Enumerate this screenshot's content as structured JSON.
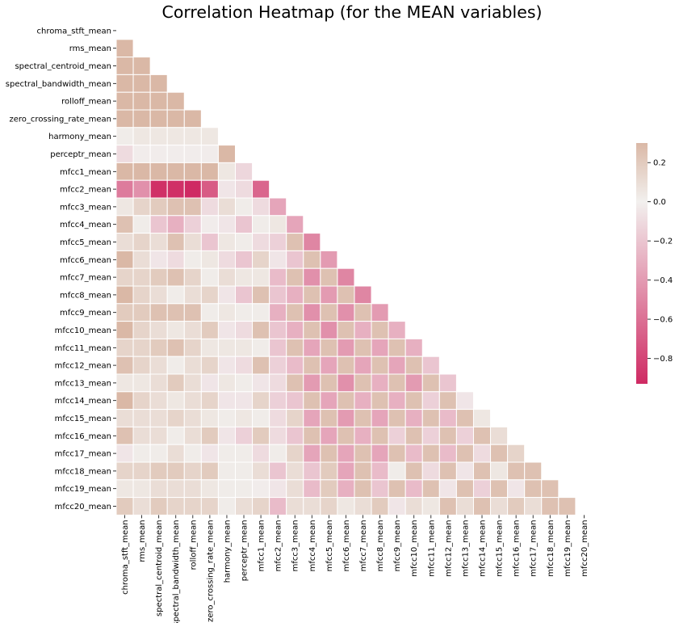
{
  "chart_data": {
    "type": "heatmap",
    "title": "Correlation Heatmap (for the MEAN variables)",
    "xlabel": "",
    "ylabel": "",
    "mask": "upper-triangle-including-diagonal",
    "labels": [
      "chroma_stft_mean",
      "rms_mean",
      "spectral_centroid_mean",
      "spectral_bandwidth_mean",
      "rolloff_mean",
      "zero_crossing_rate_mean",
      "harmony_mean",
      "perceptr_mean",
      "mfcc1_mean",
      "mfcc2_mean",
      "mfcc3_mean",
      "mfcc4_mean",
      "mfcc5_mean",
      "mfcc6_mean",
      "mfcc7_mean",
      "mfcc8_mean",
      "mfcc9_mean",
      "mfcc10_mean",
      "mfcc11_mean",
      "mfcc12_mean",
      "mfcc13_mean",
      "mfcc14_mean",
      "mfcc15_mean",
      "mfcc16_mean",
      "mfcc17_mean",
      "mfcc18_mean",
      "mfcc19_mean",
      "mfcc20_mean"
    ],
    "matrix": [
      [],
      [
        0.3
      ],
      [
        0.3,
        0.3
      ],
      [
        0.3,
        0.3,
        0.3
      ],
      [
        0.3,
        0.3,
        0.3,
        0.3
      ],
      [
        0.3,
        0.3,
        0.3,
        0.3,
        0.3
      ],
      [
        0.02,
        0.05,
        0.05,
        0.05,
        0.05,
        0.05
      ],
      [
        -0.1,
        -0.02,
        -0.02,
        -0.02,
        -0.02,
        -0.02,
        0.3
      ],
      [
        0.3,
        0.3,
        0.3,
        0.3,
        0.3,
        0.3,
        0.05,
        -0.12
      ],
      [
        -0.55,
        -0.45,
        -0.9,
        -0.9,
        -0.93,
        -0.7,
        -0.05,
        -0.1,
        -0.65
      ],
      [
        0.05,
        0.15,
        0.2,
        0.25,
        0.25,
        -0.1,
        0.1,
        0.02,
        -0.1,
        -0.35
      ],
      [
        0.25,
        0.02,
        -0.2,
        -0.3,
        -0.15,
        -0.02,
        -0.05,
        -0.2,
        0.02,
        0.05,
        -0.35
      ],
      [
        0.1,
        0.15,
        0.1,
        0.25,
        0.1,
        -0.2,
        0.05,
        0.02,
        -0.1,
        -0.15,
        0.25,
        -0.5
      ],
      [
        0.3,
        0.1,
        -0.05,
        -0.1,
        0.02,
        0.05,
        -0.1,
        -0.2,
        0.15,
        -0.05,
        -0.2,
        0.25,
        -0.4
      ],
      [
        0.15,
        0.15,
        0.2,
        0.25,
        0.15,
        0.02,
        0.1,
        0.05,
        0.05,
        -0.25,
        0.25,
        -0.45,
        0.25,
        -0.5
      ],
      [
        0.3,
        0.15,
        0.1,
        0.02,
        0.1,
        0.15,
        -0.05,
        -0.2,
        0.25,
        -0.2,
        -0.3,
        0.25,
        -0.4,
        0.25,
        -0.5
      ],
      [
        0.2,
        0.2,
        0.25,
        0.25,
        0.25,
        0.02,
        0.05,
        0.02,
        0.02,
        -0.3,
        0.25,
        -0.45,
        0.25,
        -0.45,
        0.25,
        -0.4
      ],
      [
        0.3,
        0.15,
        0.1,
        0.05,
        0.1,
        0.2,
        -0.05,
        -0.1,
        0.25,
        -0.2,
        -0.3,
        0.25,
        -0.45,
        0.25,
        -0.3,
        0.25,
        -0.3
      ],
      [
        0.15,
        0.15,
        0.2,
        0.25,
        0.15,
        0.05,
        0.05,
        0.05,
        0.02,
        -0.2,
        0.25,
        -0.35,
        0.25,
        -0.4,
        0.25,
        -0.35,
        0.25,
        -0.3
      ],
      [
        0.25,
        0.15,
        0.1,
        0.02,
        0.1,
        0.15,
        -0.05,
        -0.1,
        0.25,
        -0.15,
        -0.25,
        0.25,
        -0.35,
        0.25,
        -0.35,
        0.25,
        -0.35,
        0.25,
        -0.2
      ],
      [
        0.05,
        0.05,
        0.1,
        0.2,
        0.1,
        -0.05,
        0.05,
        0.02,
        -0.05,
        -0.1,
        0.25,
        -0.4,
        0.25,
        -0.45,
        0.25,
        -0.3,
        0.25,
        -0.4,
        0.25,
        -0.2
      ],
      [
        0.3,
        0.15,
        0.1,
        0.05,
        0.1,
        0.15,
        -0.05,
        -0.05,
        0.15,
        -0.15,
        -0.2,
        0.25,
        -0.35,
        0.25,
        -0.3,
        0.25,
        -0.3,
        0.25,
        -0.15,
        0.25,
        -0.05
      ],
      [
        0.1,
        0.1,
        0.1,
        0.15,
        0.1,
        0.05,
        0.02,
        0.05,
        0.02,
        -0.1,
        0.15,
        -0.35,
        0.25,
        -0.4,
        0.25,
        -0.35,
        0.25,
        -0.3,
        0.25,
        -0.25,
        0.25,
        0.05
      ],
      [
        0.25,
        0.1,
        0.1,
        0.02,
        0.1,
        0.2,
        -0.05,
        -0.15,
        0.2,
        -0.1,
        -0.2,
        0.25,
        -0.35,
        0.25,
        -0.3,
        0.25,
        -0.15,
        0.25,
        -0.15,
        0.25,
        -0.15,
        0.25,
        0.1
      ],
      [
        -0.05,
        0.02,
        0.02,
        0.1,
        0.02,
        -0.05,
        0.02,
        0.02,
        -0.1,
        0.02,
        0.15,
        -0.35,
        0.25,
        -0.35,
        0.25,
        -0.35,
        0.25,
        -0.25,
        0.25,
        -0.25,
        0.25,
        -0.1,
        0.25,
        0.15
      ],
      [
        0.15,
        0.15,
        0.2,
        0.2,
        0.15,
        0.2,
        0.02,
        0.02,
        0.1,
        -0.2,
        0.1,
        -0.2,
        0.2,
        -0.35,
        0.25,
        -0.25,
        0.02,
        0.25,
        -0.1,
        0.25,
        -0.05,
        0.25,
        0.05,
        0.25,
        0.25
      ],
      [
        0.05,
        0.05,
        0.1,
        0.1,
        0.1,
        0.05,
        0.02,
        0.02,
        -0.02,
        -0.05,
        0.1,
        -0.25,
        0.2,
        -0.3,
        0.25,
        -0.2,
        0.25,
        -0.25,
        0.25,
        -0.05,
        0.25,
        -0.15,
        0.25,
        -0.05,
        0.25,
        0.25
      ],
      [
        0.2,
        0.1,
        0.2,
        0.15,
        0.15,
        0.15,
        0.02,
        0.1,
        0.15,
        -0.25,
        0.1,
        0.1,
        0.15,
        0.05,
        0.1,
        0.2,
        -0.05,
        0.1,
        0.05,
        0.25,
        0.1,
        0.25,
        0.1,
        0.2,
        0.1,
        0.25,
        0.25
      ]
    ],
    "colorbar": {
      "vmin": -0.93,
      "vmax": 0.3,
      "ticks": [
        0.2,
        0.0,
        -0.2,
        -0.4,
        -0.6,
        -0.8
      ],
      "tick_labels": [
        "0.2",
        "0.0",
        "−0.2",
        "−0.4",
        "−0.6",
        "−0.8"
      ],
      "neg_color": "#cf2a63",
      "mid_color": "#f2f0ee",
      "pos_color": "#dab8a6"
    },
    "grid": false,
    "cell_border_color": "#ffffff"
  }
}
